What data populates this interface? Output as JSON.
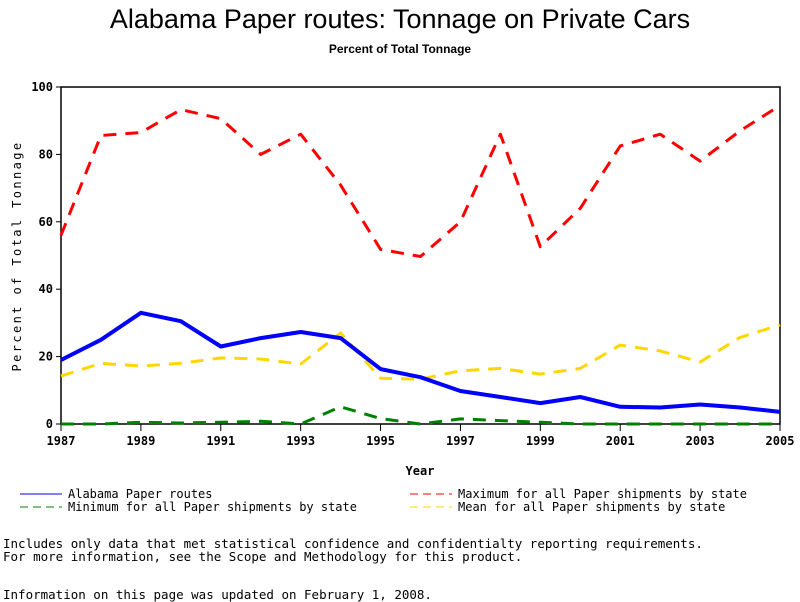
{
  "page": {
    "footnotes": [
      "Includes only data that met statistical confidence and confidentialty reporting requirements.",
      "For more information, see the Scope and Methodology for this product."
    ],
    "updated_note": "Information on this page was updated on February 1, 2008."
  },
  "chart_data": {
    "type": "line",
    "title": "Alabama Paper routes: Tonnage on Private Cars",
    "subtitle": "Percent of Total Tonnage",
    "xlabel": "Year",
    "ylabel": "Percent of Total Tonnage",
    "x": [
      1987,
      1988,
      1989,
      1990,
      1991,
      1992,
      1993,
      1994,
      1995,
      1996,
      1997,
      1998,
      1999,
      2000,
      2001,
      2002,
      2003,
      2004,
      2005
    ],
    "xlim": [
      1987,
      2005
    ],
    "ylim": [
      0,
      100
    ],
    "xticks": [
      "1987",
      "1989",
      "1991",
      "1993",
      "1995",
      "1997",
      "1999",
      "2001",
      "2003",
      "2005"
    ],
    "xtick_values": [
      1987,
      1989,
      1991,
      1993,
      1995,
      1997,
      1999,
      2001,
      2003,
      2005
    ],
    "yticks": [
      "0",
      "20",
      "40",
      "60",
      "80",
      "100"
    ],
    "ytick_values": [
      0,
      20,
      40,
      60,
      80,
      100
    ],
    "grid": false,
    "legend_position": "bottom",
    "series": [
      {
        "name": "Alabama Paper routes",
        "color": "#0000ff",
        "style": "solid",
        "values": [
          19,
          25,
          33,
          30.5,
          23,
          25.5,
          27.3,
          25.5,
          16.3,
          13.9,
          9.8,
          8,
          6.2,
          8,
          5.1,
          4.9,
          5.8,
          4.9,
          3.6
        ]
      },
      {
        "name": "Maximum for all Paper shipments by state",
        "color": "#ff0000",
        "style": "dashed",
        "values": [
          56,
          85.6,
          86.5,
          93.3,
          90.6,
          80,
          86,
          70.9,
          51.8,
          49.7,
          60,
          86,
          52.6,
          64,
          82.5,
          86,
          78,
          87,
          94.5
        ]
      },
      {
        "name": "Minimum for all Paper shipments by state",
        "color": "#008000",
        "style": "dashed",
        "values": [
          0,
          0,
          0.5,
          0.3,
          0.5,
          0.8,
          0,
          5.1,
          1.6,
          0,
          1.5,
          1,
          0.5,
          0,
          0,
          0,
          0,
          0,
          0
        ]
      },
      {
        "name": "Mean for all Paper shipments by state",
        "color": "#ffd700",
        "style": "dashed",
        "values": [
          14.2,
          18,
          17.2,
          18,
          19.6,
          19.3,
          17.8,
          27,
          13.6,
          13.3,
          15.8,
          16.5,
          14.8,
          16.5,
          23.4,
          21.7,
          18.4,
          25.7,
          29.4
        ]
      }
    ],
    "legend": [
      {
        "label": "Alabama Paper routes",
        "series": 0
      },
      {
        "label": "Maximum for all Paper shipments by state",
        "series": 1
      },
      {
        "label": "Minimum for all Paper shipments by state",
        "series": 2
      },
      {
        "label": "Mean for all Paper shipments by state",
        "series": 3
      }
    ]
  }
}
